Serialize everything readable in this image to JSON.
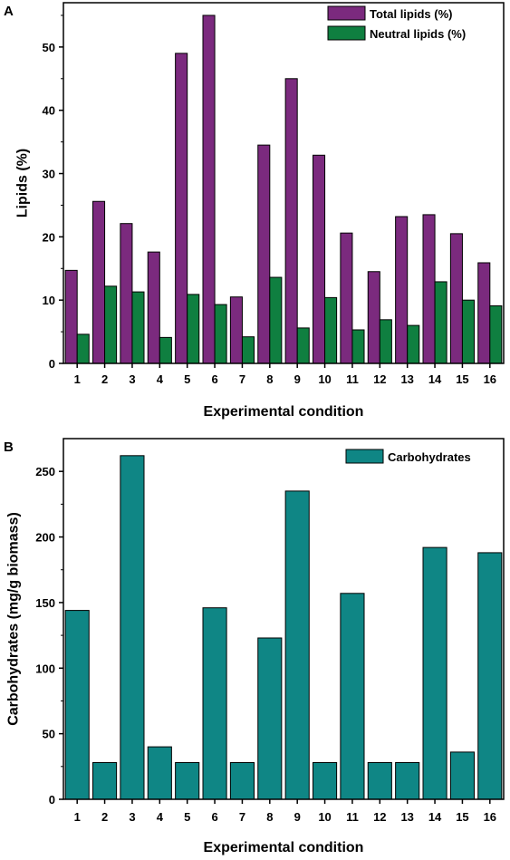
{
  "chart_data": [
    {
      "panel": "A",
      "type": "bar",
      "xlabel": "Experimental condition",
      "ylabel": "Lipids (%)",
      "ylim": [
        0,
        57
      ],
      "yticks": [
        0,
        10,
        20,
        30,
        40,
        50
      ],
      "categories": [
        "1",
        "2",
        "3",
        "4",
        "5",
        "6",
        "7",
        "8",
        "9",
        "10",
        "11",
        "12",
        "13",
        "14",
        "15",
        "16"
      ],
      "series": [
        {
          "name": "Total lipids (%)",
          "color": "#7b2a7e",
          "values": [
            14.7,
            25.6,
            22.1,
            17.6,
            49.0,
            55.0,
            10.5,
            34.5,
            45.0,
            32.9,
            20.6,
            14.5,
            23.2,
            23.5,
            20.5,
            15.9
          ]
        },
        {
          "name": "Neutral lipids (%)",
          "color": "#0f7f40",
          "values": [
            4.6,
            12.2,
            11.3,
            4.1,
            10.9,
            9.3,
            4.2,
            13.6,
            5.6,
            10.4,
            5.3,
            6.9,
            6.0,
            12.9,
            10.0,
            9.1
          ]
        }
      ],
      "legend_position": "top-right",
      "grid": false
    },
    {
      "panel": "B",
      "type": "bar",
      "xlabel": "Experimental condition",
      "ylabel": "Carbohydrates (mg/g biomass)",
      "ylim": [
        0,
        275
      ],
      "yticks": [
        0,
        50,
        100,
        150,
        200,
        250
      ],
      "categories": [
        "1",
        "2",
        "3",
        "4",
        "5",
        "6",
        "7",
        "8",
        "9",
        "10",
        "11",
        "12",
        "13",
        "14",
        "15",
        "16"
      ],
      "series": [
        {
          "name": "Carbohydrates",
          "color": "#0f8685",
          "values": [
            144,
            28,
            262,
            40,
            28,
            146,
            28,
            123,
            235,
            28,
            157,
            28,
            28,
            192,
            36,
            188
          ]
        }
      ],
      "legend_position": "top-right",
      "grid": false
    }
  ]
}
